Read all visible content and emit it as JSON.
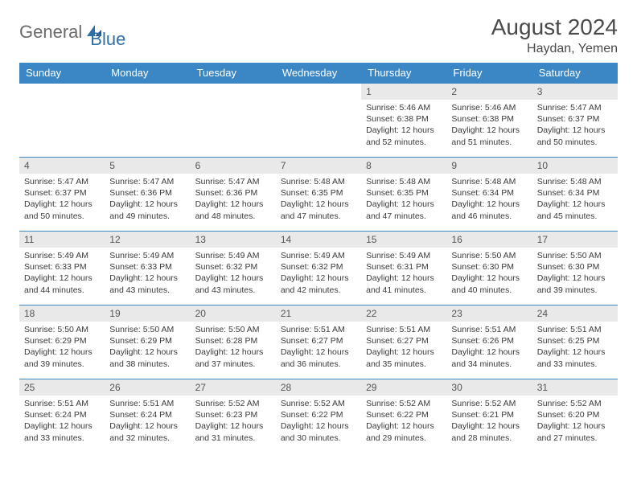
{
  "logo": {
    "text1": "General",
    "text2": "Blue"
  },
  "title": "August 2024",
  "location": "Haydan, Yemen",
  "headers": [
    "Sunday",
    "Monday",
    "Tuesday",
    "Wednesday",
    "Thursday",
    "Friday",
    "Saturday"
  ],
  "colors": {
    "header_bg": "#3b86c4",
    "header_fg": "#ffffff",
    "daynum_bg": "#e9e9e9",
    "row_border": "#3b86c4",
    "logo_gray": "#6a6a6a",
    "logo_blue": "#2f6fa8"
  },
  "weeks": [
    [
      null,
      null,
      null,
      null,
      {
        "n": "1",
        "sr": "5:46 AM",
        "ss": "6:38 PM",
        "dl": "12 hours and 52 minutes."
      },
      {
        "n": "2",
        "sr": "5:46 AM",
        "ss": "6:38 PM",
        "dl": "12 hours and 51 minutes."
      },
      {
        "n": "3",
        "sr": "5:47 AM",
        "ss": "6:37 PM",
        "dl": "12 hours and 50 minutes."
      }
    ],
    [
      {
        "n": "4",
        "sr": "5:47 AM",
        "ss": "6:37 PM",
        "dl": "12 hours and 50 minutes."
      },
      {
        "n": "5",
        "sr": "5:47 AM",
        "ss": "6:36 PM",
        "dl": "12 hours and 49 minutes."
      },
      {
        "n": "6",
        "sr": "5:47 AM",
        "ss": "6:36 PM",
        "dl": "12 hours and 48 minutes."
      },
      {
        "n": "7",
        "sr": "5:48 AM",
        "ss": "6:35 PM",
        "dl": "12 hours and 47 minutes."
      },
      {
        "n": "8",
        "sr": "5:48 AM",
        "ss": "6:35 PM",
        "dl": "12 hours and 47 minutes."
      },
      {
        "n": "9",
        "sr": "5:48 AM",
        "ss": "6:34 PM",
        "dl": "12 hours and 46 minutes."
      },
      {
        "n": "10",
        "sr": "5:48 AM",
        "ss": "6:34 PM",
        "dl": "12 hours and 45 minutes."
      }
    ],
    [
      {
        "n": "11",
        "sr": "5:49 AM",
        "ss": "6:33 PM",
        "dl": "12 hours and 44 minutes."
      },
      {
        "n": "12",
        "sr": "5:49 AM",
        "ss": "6:33 PM",
        "dl": "12 hours and 43 minutes."
      },
      {
        "n": "13",
        "sr": "5:49 AM",
        "ss": "6:32 PM",
        "dl": "12 hours and 43 minutes."
      },
      {
        "n": "14",
        "sr": "5:49 AM",
        "ss": "6:32 PM",
        "dl": "12 hours and 42 minutes."
      },
      {
        "n": "15",
        "sr": "5:49 AM",
        "ss": "6:31 PM",
        "dl": "12 hours and 41 minutes."
      },
      {
        "n": "16",
        "sr": "5:50 AM",
        "ss": "6:30 PM",
        "dl": "12 hours and 40 minutes."
      },
      {
        "n": "17",
        "sr": "5:50 AM",
        "ss": "6:30 PM",
        "dl": "12 hours and 39 minutes."
      }
    ],
    [
      {
        "n": "18",
        "sr": "5:50 AM",
        "ss": "6:29 PM",
        "dl": "12 hours and 39 minutes."
      },
      {
        "n": "19",
        "sr": "5:50 AM",
        "ss": "6:29 PM",
        "dl": "12 hours and 38 minutes."
      },
      {
        "n": "20",
        "sr": "5:50 AM",
        "ss": "6:28 PM",
        "dl": "12 hours and 37 minutes."
      },
      {
        "n": "21",
        "sr": "5:51 AM",
        "ss": "6:27 PM",
        "dl": "12 hours and 36 minutes."
      },
      {
        "n": "22",
        "sr": "5:51 AM",
        "ss": "6:27 PM",
        "dl": "12 hours and 35 minutes."
      },
      {
        "n": "23",
        "sr": "5:51 AM",
        "ss": "6:26 PM",
        "dl": "12 hours and 34 minutes."
      },
      {
        "n": "24",
        "sr": "5:51 AM",
        "ss": "6:25 PM",
        "dl": "12 hours and 33 minutes."
      }
    ],
    [
      {
        "n": "25",
        "sr": "5:51 AM",
        "ss": "6:24 PM",
        "dl": "12 hours and 33 minutes."
      },
      {
        "n": "26",
        "sr": "5:51 AM",
        "ss": "6:24 PM",
        "dl": "12 hours and 32 minutes."
      },
      {
        "n": "27",
        "sr": "5:52 AM",
        "ss": "6:23 PM",
        "dl": "12 hours and 31 minutes."
      },
      {
        "n": "28",
        "sr": "5:52 AM",
        "ss": "6:22 PM",
        "dl": "12 hours and 30 minutes."
      },
      {
        "n": "29",
        "sr": "5:52 AM",
        "ss": "6:22 PM",
        "dl": "12 hours and 29 minutes."
      },
      {
        "n": "30",
        "sr": "5:52 AM",
        "ss": "6:21 PM",
        "dl": "12 hours and 28 minutes."
      },
      {
        "n": "31",
        "sr": "5:52 AM",
        "ss": "6:20 PM",
        "dl": "12 hours and 27 minutes."
      }
    ]
  ],
  "labels": {
    "sunrise": "Sunrise:",
    "sunset": "Sunset:",
    "daylight": "Daylight:"
  }
}
